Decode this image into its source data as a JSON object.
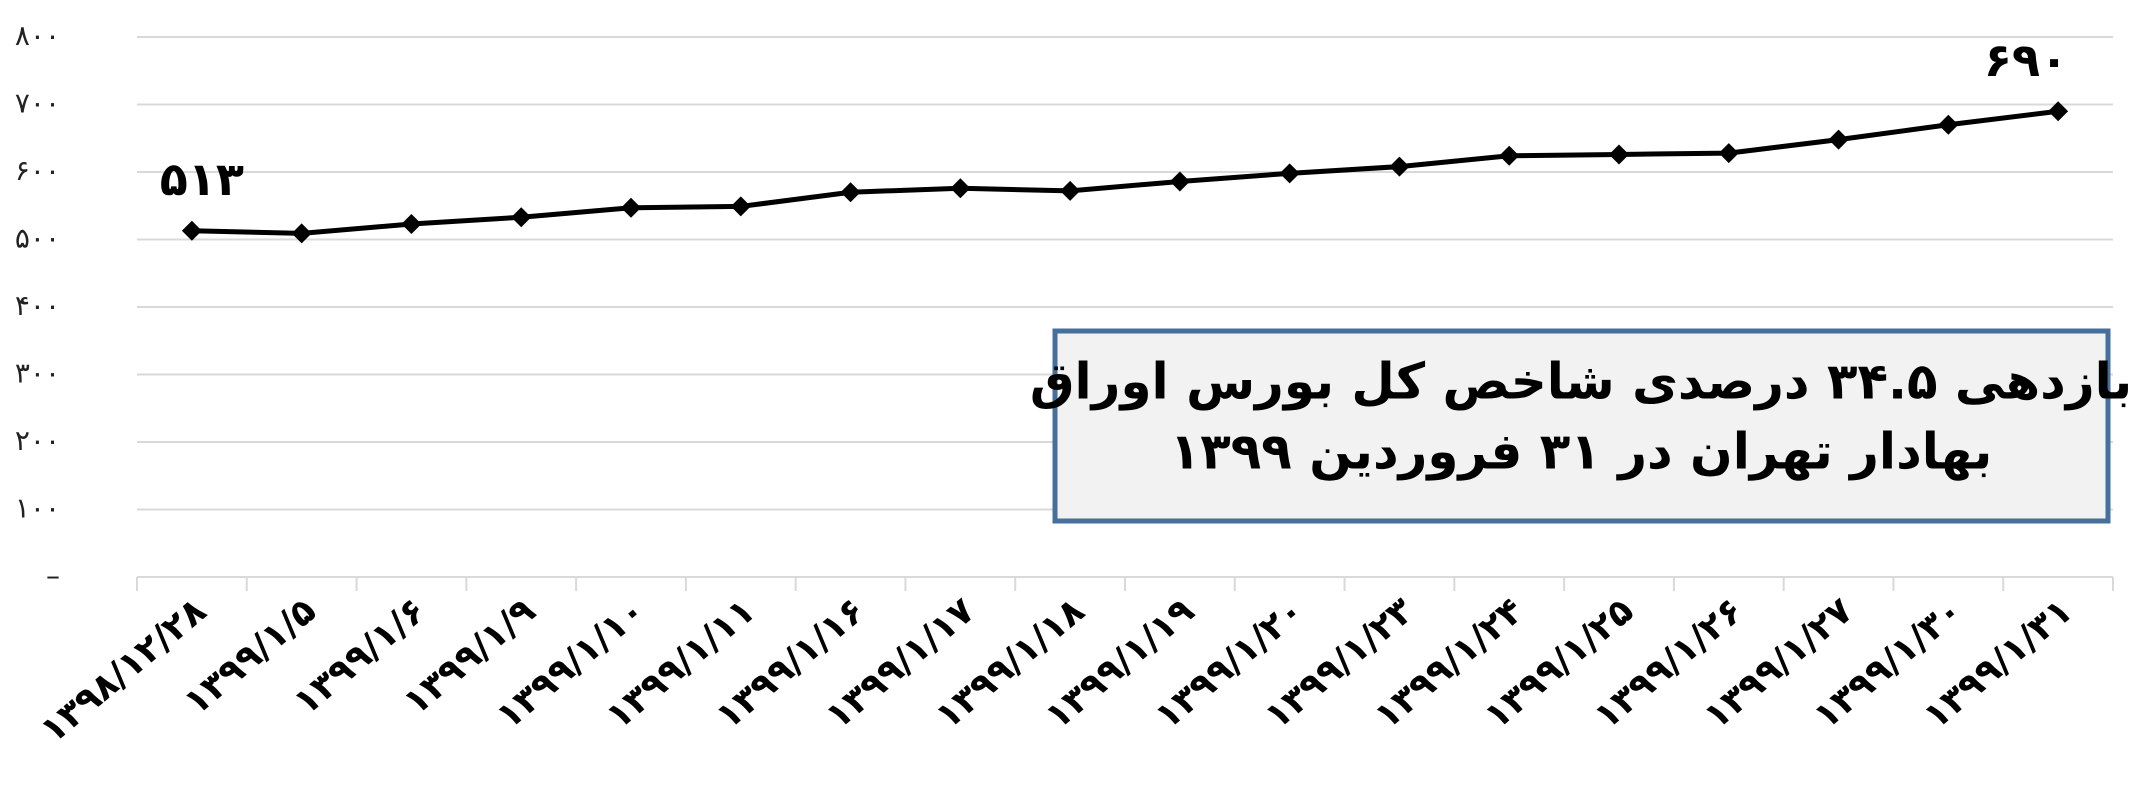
{
  "chart_data": {
    "type": "line",
    "categories": [
      "۱۳۹۸/۱۲/۲۸",
      "۱۳۹۹/۱/۵",
      "۱۳۹۹/۱/۶",
      "۱۳۹۹/۱/۹",
      "۱۳۹۹/۱/۱۰",
      "۱۳۹۹/۱/۱۱",
      "۱۳۹۹/۱/۱۶",
      "۱۳۹۹/۱/۱۷",
      "۱۳۹۹/۱/۱۸",
      "۱۳۹۹/۱/۱۹",
      "۱۳۹۹/۱/۲۰",
      "۱۳۹۹/۱/۲۳",
      "۱۳۹۹/۱/۲۴",
      "۱۳۹۹/۱/۲۵",
      "۱۳۹۹/۱/۲۶",
      "۱۳۹۹/۱/۲۷",
      "۱۳۹۹/۱/۳۰",
      "۱۳۹۹/۱/۳۱"
    ],
    "values": [
      513,
      509,
      523,
      533,
      547,
      549,
      570,
      576,
      572,
      586,
      598,
      608,
      624,
      626,
      628,
      648,
      670,
      690
    ],
    "value_labels": [
      "۵۱۳",
      null,
      null,
      null,
      null,
      null,
      null,
      null,
      null,
      null,
      null,
      null,
      null,
      null,
      null,
      null,
      null,
      "۶۹۰"
    ],
    "color": "#000000",
    "ylim": [
      0,
      800
    ],
    "yticks": [
      {
        "value": 0,
        "label": "–"
      },
      {
        "value": 100,
        "label": "۱۰۰"
      },
      {
        "value": 200,
        "label": "۲۰۰"
      },
      {
        "value": 300,
        "label": "۳۰۰"
      },
      {
        "value": 400,
        "label": "۴۰۰"
      },
      {
        "value": 500,
        "label": "۵۰۰"
      },
      {
        "value": 600,
        "label": "۶۰۰"
      },
      {
        "value": 700,
        "label": "۷۰۰"
      },
      {
        "value": 800,
        "label": "۸۰۰"
      }
    ],
    "grid": true,
    "annotation": [
      "بازدهی ۳۴.۵ درصدی شاخص کل بورس اوراق",
      "بهادار تهران در ۳۱ فروردین ۱۳۹۹"
    ]
  }
}
